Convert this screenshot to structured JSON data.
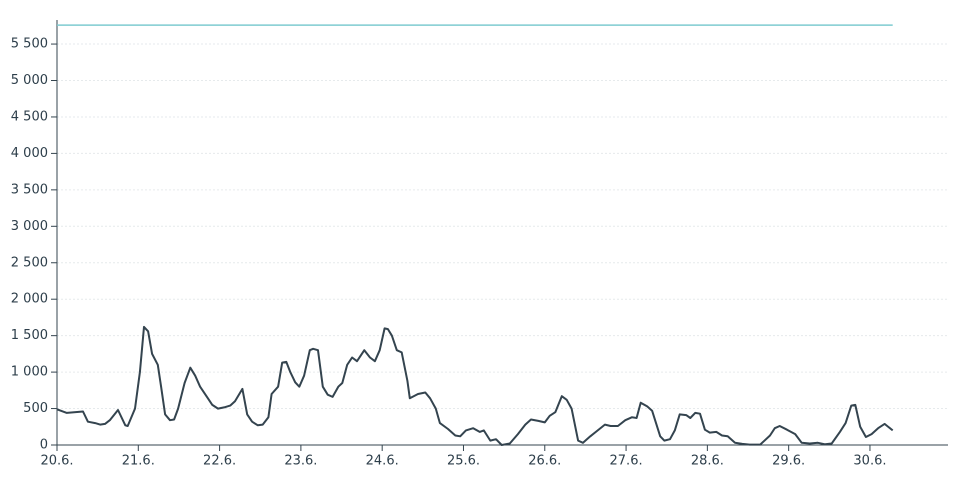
{
  "chart_data": {
    "type": "line",
    "xlim": [
      0,
      10.96
    ],
    "xticks": [
      {
        "value": 0,
        "label": "20.6."
      },
      {
        "value": 1,
        "label": "21.6."
      },
      {
        "value": 2,
        "label": "22.6."
      },
      {
        "value": 3,
        "label": "23.6."
      },
      {
        "value": 4,
        "label": "24.6."
      },
      {
        "value": 5,
        "label": "25.6."
      },
      {
        "value": 6,
        "label": "26.6."
      },
      {
        "value": 7,
        "label": "27.6."
      },
      {
        "value": 8,
        "label": "28.6."
      },
      {
        "value": 9,
        "label": "29.6."
      },
      {
        "value": 10,
        "label": "30.6."
      }
    ],
    "ylim": [
      0,
      5830
    ],
    "yticks": [
      0,
      {
        "value": 500,
        "label": "500"
      },
      {
        "value": 1000,
        "label": "1 000"
      },
      {
        "value": 1500,
        "label": "1 500"
      },
      {
        "value": 2000,
        "label": "2 000"
      },
      {
        "value": 2500,
        "label": "2 500"
      },
      {
        "value": 3000,
        "label": "3 000"
      },
      {
        "value": 3500,
        "label": "3 500"
      },
      {
        "value": 4000,
        "label": "4 000"
      },
      {
        "value": 4500,
        "label": "4 500"
      },
      {
        "value": 5000,
        "label": "5 000"
      },
      {
        "value": 5500,
        "label": "5 500"
      }
    ],
    "grid": true,
    "series": [
      {
        "color": "#34444f",
        "x": [
          0,
          0.12,
          0.32,
          0.38,
          0.47,
          0.53,
          0.59,
          0.65,
          0.75,
          0.84,
          0.87,
          0.96,
          1.02,
          1.07,
          1.12,
          1.17,
          1.24,
          1.28,
          1.33,
          1.39,
          1.44,
          1.49,
          1.57,
          1.64,
          1.7,
          1.76,
          1.85,
          1.91,
          1.98,
          2.07,
          2.13,
          2.19,
          2.28,
          2.34,
          2.4,
          2.47,
          2.53,
          2.6,
          2.64,
          2.72,
          2.77,
          2.82,
          2.87,
          2.93,
          2.98,
          3.04,
          3.11,
          3.15,
          3.21,
          3.27,
          3.33,
          3.39,
          3.46,
          3.51,
          3.57,
          3.63,
          3.69,
          3.78,
          3.85,
          3.91,
          3.97,
          4.03,
          4.07,
          4.12,
          4.18,
          4.24,
          4.31,
          4.34,
          4.44,
          4.53,
          4.59,
          4.66,
          4.71,
          4.81,
          4.9,
          4.96,
          5.03,
          5.12,
          5.2,
          5.25,
          5.33,
          5.4,
          5.47,
          5.57,
          5.67,
          5.76,
          5.83,
          5.92,
          6.0,
          6.06,
          6.13,
          6.21,
          6.27,
          6.33,
          6.41,
          6.47,
          6.56,
          6.64,
          6.74,
          6.81,
          6.9,
          6.99,
          7.07,
          7.13,
          7.18,
          7.26,
          7.32,
          7.42,
          7.47,
          7.54,
          7.6,
          7.66,
          7.74,
          7.79,
          7.85,
          7.91,
          7.97,
          8.03,
          8.11,
          8.18,
          8.25,
          8.34,
          8.43,
          8.52,
          8.65,
          8.77,
          8.83,
          8.89,
          8.98,
          9.08,
          9.16,
          9.26,
          9.36,
          9.45,
          9.53,
          9.63,
          9.7,
          9.77,
          9.82,
          9.88,
          9.95,
          10.02,
          10.1,
          10.18,
          10.28
        ],
        "values": [
          490,
          440,
          460,
          320,
          300,
          280,
          290,
          340,
          480,
          270,
          260,
          500,
          1000,
          1620,
          1560,
          1250,
          1100,
          800,
          420,
          340,
          350,
          500,
          850,
          1060,
          950,
          800,
          650,
          550,
          500,
          520,
          540,
          600,
          770,
          420,
          320,
          270,
          280,
          380,
          700,
          800,
          1130,
          1140,
          1000,
          860,
          800,
          950,
          1300,
          1320,
          1300,
          800,
          690,
          660,
          800,
          850,
          1100,
          1200,
          1150,
          1300,
          1200,
          1150,
          1300,
          1600,
          1590,
          1500,
          1300,
          1270,
          880,
          640,
          700,
          720,
          640,
          500,
          300,
          220,
          130,
          120,
          200,
          230,
          180,
          200,
          60,
          80,
          0,
          20,
          150,
          280,
          350,
          330,
          310,
          400,
          450,
          670,
          620,
          500,
          60,
          30,
          120,
          190,
          280,
          260,
          260,
          340,
          380,
          370,
          580,
          530,
          470,
          120,
          60,
          80,
          200,
          420,
          410,
          370,
          440,
          430,
          210,
          170,
          180,
          130,
          120,
          30,
          15,
          5,
          5,
          130,
          230,
          260,
          210,
          150,
          30,
          20,
          30,
          10,
          20,
          180,
          300,
          540,
          550,
          250,
          110,
          150,
          230,
          290,
          200
        ]
      },
      {
        "color": "#7ecbd0",
        "x": [
          0,
          10.28
        ],
        "values": [
          5760,
          5760
        ]
      }
    ]
  }
}
